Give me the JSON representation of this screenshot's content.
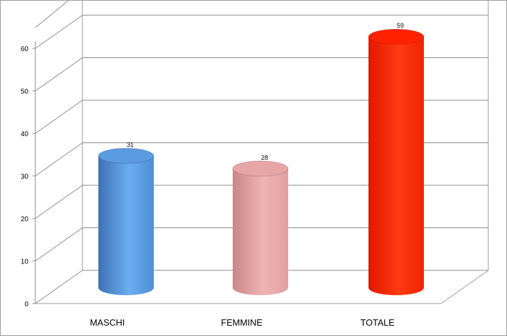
{
  "chart_data": {
    "type": "bar",
    "categories": [
      "MASCHI",
      "FEMMINE",
      "TOTALE"
    ],
    "values": [
      31,
      28,
      59
    ],
    "data_labels": [
      "31",
      "28",
      "59"
    ],
    "colors": [
      "#5b9be0",
      "#e8a5a6",
      "#ff2200"
    ],
    "title": "",
    "xlabel": "",
    "ylabel": "",
    "ylim": [
      0,
      60
    ],
    "yticks": [
      "0",
      "10",
      "20",
      "30",
      "40",
      "50",
      "60"
    ],
    "grid": true,
    "legend": "none",
    "style": "3d-cylinder"
  }
}
